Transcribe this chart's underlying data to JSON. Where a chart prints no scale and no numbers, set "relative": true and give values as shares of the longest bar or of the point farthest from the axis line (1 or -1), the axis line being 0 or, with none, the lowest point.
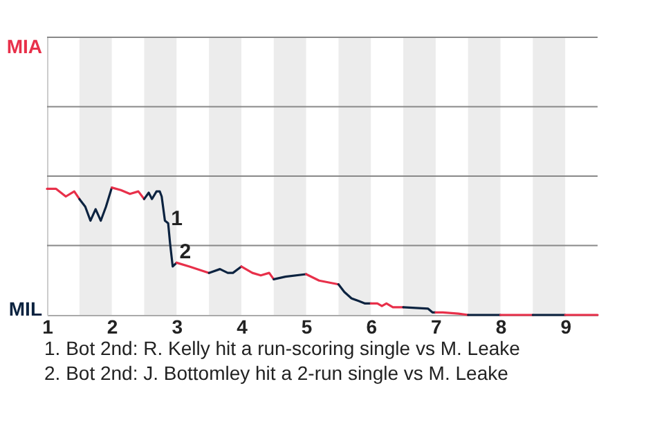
{
  "chart_data": {
    "type": "line",
    "relative": true,
    "xlim": [
      1,
      9.5
    ],
    "xticks": [
      1,
      2,
      3,
      4,
      5,
      6,
      7,
      8,
      9
    ],
    "ref_lines": [
      {
        "axis": "y",
        "value": 0.545,
        "color": "#888888"
      },
      {
        "axis": "y",
        "value": 1.09,
        "color": "#888888"
      },
      {
        "axis": "y",
        "value": 1.635,
        "color": "#888888"
      },
      {
        "axis": "y",
        "value": 2.18,
        "color": "#888888"
      }
    ],
    "series": [
      {
        "color": "#e8304a",
        "x": [
          1,
          1.14,
          1.29,
          1.42,
          1.5
        ],
        "values": [
          0.99,
          0.99,
          0.93,
          0.97,
          0.91
        ]
      },
      {
        "color": "#0c2340",
        "x": [
          1.5,
          1.59,
          1.67,
          1.75,
          1.83,
          1.91,
          2
        ],
        "values": [
          0.91,
          0.85,
          0.74,
          0.83,
          0.74,
          0.85,
          1
        ]
      },
      {
        "color": "#e8304a",
        "x": [
          2,
          2.14,
          2.28,
          2.41,
          2.5
        ],
        "values": [
          1,
          0.98,
          0.95,
          0.97,
          0.91
        ]
      },
      {
        "color": "#0c2340",
        "x": [
          2.5,
          2.57,
          2.62,
          2.69,
          2.74,
          2.77,
          2.82,
          2.87,
          2.9,
          2.94,
          3
        ],
        "values": [
          0.91,
          0.96,
          0.91,
          0.97,
          0.97,
          0.93,
          0.74,
          0.72,
          0.56,
          0.38,
          0.41
        ]
      },
      {
        "color": "#e8304a",
        "x": [
          3,
          3.2,
          3.5
        ],
        "values": [
          0.41,
          0.38,
          0.33
        ]
      },
      {
        "color": "#0c2340",
        "x": [
          3.5,
          3.67,
          3.79,
          3.87,
          4
        ],
        "values": [
          0.33,
          0.36,
          0.33,
          0.33,
          0.38
        ]
      },
      {
        "color": "#e8304a",
        "x": [
          4,
          4.17,
          4.3,
          4.43,
          4.5
        ],
        "values": [
          0.38,
          0.33,
          0.31,
          0.33,
          0.28
        ]
      },
      {
        "color": "#0c2340",
        "x": [
          4.5,
          4.68,
          5
        ],
        "values": [
          0.28,
          0.3,
          0.32
        ]
      },
      {
        "color": "#e8304a",
        "x": [
          5,
          5.2,
          5.5
        ],
        "values": [
          0.32,
          0.27,
          0.24
        ]
      },
      {
        "color": "#0c2340",
        "x": [
          5.5,
          5.59,
          5.7,
          5.81,
          5.91,
          6
        ],
        "values": [
          0.24,
          0.18,
          0.13,
          0.11,
          0.09,
          0.09
        ]
      },
      {
        "color": "#e8304a",
        "x": [
          6,
          6.1,
          6.17,
          6.24,
          6.34,
          6.5
        ],
        "values": [
          0.09,
          0.09,
          0.07,
          0.09,
          0.06,
          0.06
        ]
      },
      {
        "color": "#0c2340",
        "x": [
          6.5,
          6.88,
          6.95,
          7
        ],
        "values": [
          0.06,
          0.05,
          0.02,
          0.02
        ]
      },
      {
        "color": "#e8304a",
        "x": [
          7,
          7.11,
          7.35,
          7.5
        ],
        "values": [
          0.02,
          0.02,
          0.01,
          0
        ]
      },
      {
        "color": "#0c2340",
        "x": [
          7.5,
          8
        ],
        "values": [
          0,
          0
        ]
      },
      {
        "color": "#e8304a",
        "x": [
          8,
          8.5
        ],
        "values": [
          0,
          0
        ]
      },
      {
        "color": "#0c2340",
        "x": [
          8.5,
          9
        ],
        "values": [
          0,
          0
        ]
      },
      {
        "color": "#e8304a",
        "x": [
          9,
          9.5
        ],
        "values": [
          0,
          0
        ]
      }
    ],
    "bands": [
      {
        "axis": "x",
        "from": 1.5,
        "to": 2,
        "color": "#ececec"
      },
      {
        "axis": "x",
        "from": 2.5,
        "to": 3,
        "color": "#ececec"
      },
      {
        "axis": "x",
        "from": 3.5,
        "to": 4,
        "color": "#ececec"
      },
      {
        "axis": "x",
        "from": 4.5,
        "to": 5,
        "color": "#ececec"
      },
      {
        "axis": "x",
        "from": 5.5,
        "to": 6,
        "color": "#ececec"
      },
      {
        "axis": "x",
        "from": 6.5,
        "to": 7,
        "color": "#ececec"
      },
      {
        "axis": "x",
        "from": 7.5,
        "to": 8,
        "color": "#ececec"
      },
      {
        "axis": "x",
        "from": 8.5,
        "to": 9,
        "color": "#ececec"
      }
    ],
    "annotations": [
      "MIA",
      "MIL",
      {
        "text": "1",
        "x": 2.85,
        "y": 0.76
      },
      {
        "text": "2",
        "x": 2.98,
        "y": 0.5
      },
      "1. Bot 2nd: R. Kelly hit a run-scoring single vs M. Leake",
      "2. Bot 2nd: J. Bottomley hit a 2-run single vs M. Leake"
    ]
  }
}
